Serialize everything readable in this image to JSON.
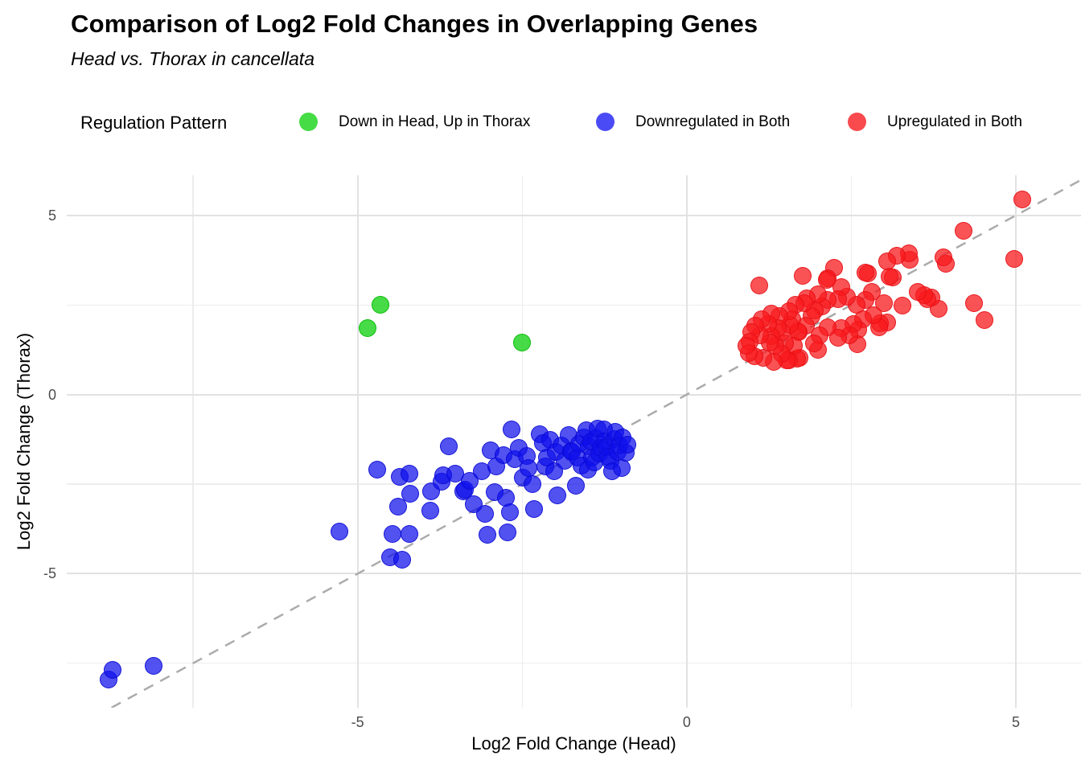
{
  "title": "Comparison of Log2 Fold Changes in Overlapping Genes",
  "subtitle": "Head vs. Thorax in cancellata",
  "legend": {
    "title": "Regulation Pattern",
    "items": [
      {
        "label": "Down in Head, Up in Thorax",
        "color": "#45DC45"
      },
      {
        "label": "Downregulated in Both",
        "color": "#4B4BF5"
      },
      {
        "label": "Upregulated in Both",
        "color": "#F94A4E"
      }
    ]
  },
  "chart_data": {
    "type": "scatter",
    "title": "Comparison of Log2 Fold Changes in Overlapping Genes",
    "subtitle": "Head vs. Thorax in cancellata",
    "xlabel": "Log2 Fold Change (Head)",
    "ylabel": "Log2 Fold Change (Thorax)",
    "xlim": [
      -9.42,
      5.99
    ],
    "ylim": [
      -8.74,
      6.12
    ],
    "x_ticks": [
      -5,
      0,
      5
    ],
    "x_tick_labels": [
      "-5",
      "0",
      "5"
    ],
    "y_ticks": [
      -5,
      0,
      5
    ],
    "y_tick_labels": [
      "-5",
      "0",
      "5"
    ],
    "x_minor_ticks": [
      -7.5,
      -2.5,
      2.5
    ],
    "y_minor_ticks": [
      -7.5,
      -2.5,
      2.5
    ],
    "grid": true,
    "legend_position": "top",
    "identity_line": {
      "equation": "y = x",
      "color": "#ababab",
      "width": 2.5,
      "dash": "13,10"
    },
    "series": [
      {
        "name": "Down in Head, Up in Thorax",
        "fill": "rgba(0,205,0,0.72)",
        "stroke": "rgba(0,185,0,0.85)",
        "points": [
          [
            -4.65,
            2.5
          ],
          [
            -4.85,
            1.85
          ],
          [
            -2.5,
            1.45
          ]
        ]
      },
      {
        "name": "Downregulated in Both",
        "fill": "rgba(15,15,235,0.72)",
        "stroke": "rgba(10,10,210,0.85)",
        "points": [
          [
            -8.78,
            -7.95
          ],
          [
            -8.72,
            -7.68
          ],
          [
            -8.1,
            -7.58
          ],
          [
            -5.28,
            -3.82
          ],
          [
            -4.7,
            -2.1
          ],
          [
            -4.51,
            -4.55
          ],
          [
            -4.47,
            -3.9
          ],
          [
            -4.38,
            -3.12
          ],
          [
            -4.36,
            -2.3
          ],
          [
            -4.32,
            -4.62
          ],
          [
            -4.21,
            -2.2
          ],
          [
            -4.2,
            -2.76
          ],
          [
            -4.21,
            -3.9
          ],
          [
            -3.9,
            -3.24
          ],
          [
            -3.88,
            -2.7
          ],
          [
            -3.72,
            -2.44
          ],
          [
            -3.7,
            -2.26
          ],
          [
            -3.61,
            -1.44
          ],
          [
            -3.52,
            -2.2
          ],
          [
            -3.4,
            -2.7
          ],
          [
            -3.37,
            -2.65
          ],
          [
            -3.3,
            -2.4
          ],
          [
            -3.24,
            -3.05
          ],
          [
            -3.12,
            -2.15
          ],
          [
            -3.06,
            -3.33
          ],
          [
            -3.03,
            -3.92
          ],
          [
            -2.98,
            -1.55
          ],
          [
            -2.92,
            -2.72
          ],
          [
            -2.89,
            -2.0
          ],
          [
            -2.79,
            -1.7
          ],
          [
            -2.75,
            -2.88
          ],
          [
            -2.72,
            -3.84
          ],
          [
            -2.69,
            -3.28
          ],
          [
            -2.66,
            -0.97
          ],
          [
            -2.61,
            -1.8
          ],
          [
            -2.55,
            -1.48
          ],
          [
            -2.49,
            -2.32
          ],
          [
            -2.43,
            -1.72
          ],
          [
            -2.4,
            -2.05
          ],
          [
            -2.35,
            -2.5
          ],
          [
            -2.32,
            -3.2
          ],
          [
            -2.24,
            -1.1
          ],
          [
            -2.18,
            -1.36
          ],
          [
            -2.15,
            -2.0
          ],
          [
            -2.12,
            -1.76
          ],
          [
            -2.08,
            -1.26
          ],
          [
            -2.02,
            -2.14
          ],
          [
            -1.99,
            -1.61
          ],
          [
            -1.96,
            -2.81
          ],
          [
            -1.91,
            -1.43
          ],
          [
            -1.86,
            -1.84
          ],
          [
            -1.8,
            -1.14
          ],
          [
            -1.76,
            -1.58
          ],
          [
            -1.74,
            -1.61
          ],
          [
            -1.69,
            -2.54
          ],
          [
            -1.66,
            -1.76
          ],
          [
            -1.63,
            -1.38
          ],
          [
            -1.6,
            -1.99
          ],
          [
            -1.56,
            -1.2
          ],
          [
            -1.53,
            -0.99
          ],
          [
            -1.5,
            -2.1
          ],
          [
            -1.49,
            -1.44
          ],
          [
            -1.45,
            -1.3
          ],
          [
            -1.44,
            -1.76
          ],
          [
            -1.4,
            -1.9
          ],
          [
            -1.38,
            -1.21
          ],
          [
            -1.35,
            -0.96
          ],
          [
            -1.33,
            -1.65
          ],
          [
            -1.3,
            -1.5
          ],
          [
            -1.26,
            -0.98
          ],
          [
            -1.25,
            -1.3
          ],
          [
            -1.22,
            -1.47
          ],
          [
            -1.2,
            -1.74
          ],
          [
            -1.16,
            -1.84
          ],
          [
            -1.14,
            -2.15
          ],
          [
            -1.1,
            -1.25
          ],
          [
            -1.09,
            -1.05
          ],
          [
            -1.05,
            -1.6
          ],
          [
            -1.03,
            -1.42
          ],
          [
            -0.99,
            -2.04
          ],
          [
            -0.97,
            -1.2
          ],
          [
            -0.93,
            -1.62
          ],
          [
            -0.9,
            -1.4
          ]
        ]
      },
      {
        "name": "Upregulated in Both",
        "fill": "rgba(248,25,30,0.75)",
        "stroke": "rgba(228,15,20,0.85)",
        "points": [
          [
            5.1,
            5.44
          ],
          [
            4.98,
            3.78
          ],
          [
            4.52,
            2.07
          ],
          [
            4.37,
            2.55
          ],
          [
            4.21,
            4.58
          ],
          [
            3.94,
            3.66
          ],
          [
            3.9,
            3.83
          ],
          [
            3.83,
            2.39
          ],
          [
            3.72,
            2.7
          ],
          [
            3.65,
            2.66
          ],
          [
            3.61,
            2.77
          ],
          [
            3.51,
            2.86
          ],
          [
            3.39,
            3.76
          ],
          [
            3.37,
            3.94
          ],
          [
            3.28,
            2.48
          ],
          [
            3.19,
            3.87
          ],
          [
            3.13,
            3.27
          ],
          [
            3.08,
            3.29
          ],
          [
            3.04,
            3.72
          ],
          [
            3.04,
            2.02
          ],
          [
            3.0,
            2.55
          ],
          [
            2.94,
            1.99
          ],
          [
            2.92,
            1.88
          ],
          [
            2.84,
            2.22
          ],
          [
            2.81,
            2.86
          ],
          [
            2.75,
            3.38
          ],
          [
            2.72,
            3.4
          ],
          [
            2.71,
            2.63
          ],
          [
            2.68,
            2.11
          ],
          [
            2.61,
            1.81
          ],
          [
            2.59,
            1.41
          ],
          [
            2.58,
            2.5
          ],
          [
            2.53,
            1.97
          ],
          [
            2.47,
            1.66
          ],
          [
            2.43,
            2.73
          ],
          [
            2.35,
            3.0
          ],
          [
            2.35,
            1.86
          ],
          [
            2.3,
            1.59
          ],
          [
            2.3,
            2.66
          ],
          [
            2.24,
            3.54
          ],
          [
            2.14,
            3.24
          ],
          [
            2.14,
            2.64
          ],
          [
            2.13,
            3.2
          ],
          [
            2.14,
            1.88
          ],
          [
            2.05,
            2.45
          ],
          [
            2.02,
            1.66
          ],
          [
            2.0,
            2.8
          ],
          [
            2.0,
            1.25
          ],
          [
            1.95,
            2.35
          ],
          [
            1.93,
            1.43
          ],
          [
            1.9,
            2.19
          ],
          [
            1.82,
            2.68
          ],
          [
            1.81,
            1.92
          ],
          [
            1.79,
            2.55
          ],
          [
            1.76,
            3.31
          ],
          [
            1.71,
            1.03
          ],
          [
            1.7,
            1.75
          ],
          [
            1.69,
            1.77
          ],
          [
            1.68,
            1.0
          ],
          [
            1.65,
            2.5
          ],
          [
            1.63,
            1.36
          ],
          [
            1.6,
            2.1
          ],
          [
            1.57,
            1.95
          ],
          [
            1.55,
            2.33
          ],
          [
            1.55,
            0.96
          ],
          [
            1.52,
            0.95
          ],
          [
            1.49,
            1.43
          ],
          [
            1.45,
            1.74
          ],
          [
            1.45,
            1.14
          ],
          [
            1.41,
            2.19
          ],
          [
            1.38,
            1.85
          ],
          [
            1.35,
            1.35
          ],
          [
            1.32,
            0.92
          ],
          [
            1.28,
            2.26
          ],
          [
            1.28,
            1.63
          ],
          [
            1.26,
            1.45
          ],
          [
            1.24,
            1.97
          ],
          [
            1.16,
            1.03
          ],
          [
            1.14,
            2.1
          ],
          [
            1.12,
            1.66
          ],
          [
            1.1,
            3.05
          ],
          [
            1.04,
            1.92
          ],
          [
            1.03,
            1.06
          ],
          [
            0.98,
            1.74
          ],
          [
            0.96,
            1.48
          ],
          [
            0.94,
            1.15
          ],
          [
            0.91,
            1.35
          ]
        ]
      }
    ]
  }
}
